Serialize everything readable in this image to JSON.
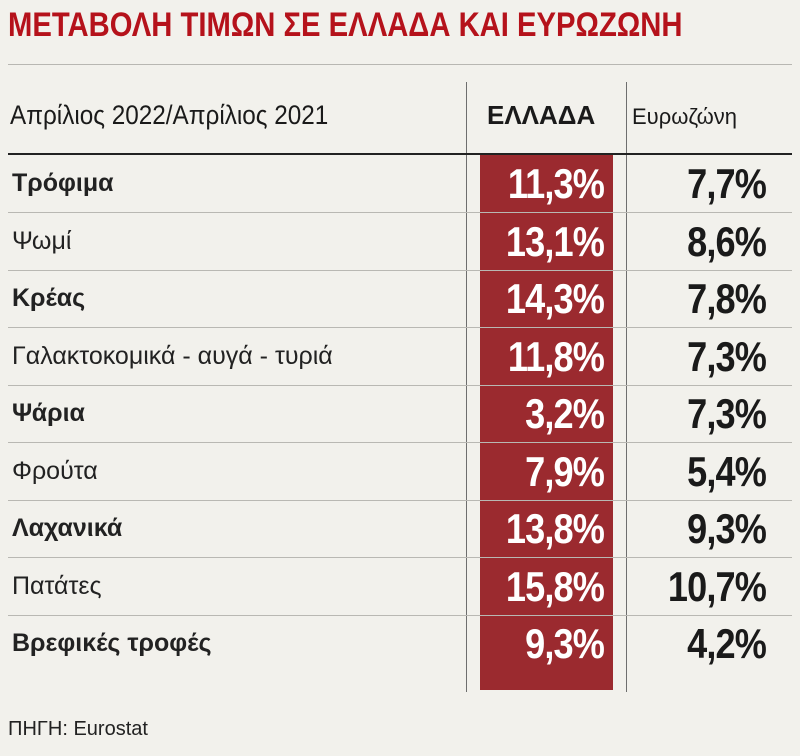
{
  "title": "ΜΕΤΑΒΟΛΗ ΤΙΜΩΝ ΣΕ ΕΛΛΑΔΑ ΚΑΙ ΕΥΡΩΖΩΝΗ",
  "source": "ΠΗΓΗ: Eurostat",
  "colors": {
    "title": "#b5121b",
    "greece_column": "#9b2a2f",
    "background": "#f2f1ec"
  },
  "chart_data": {
    "type": "table",
    "title": "ΜΕΤΑΒΟΛΗ ΤΙΜΩΝ ΣΕ ΕΛΛΑΔΑ ΚΑΙ ΕΥΡΩΖΩΝΗ",
    "columns": [
      "Απρίλιος 2022/Απρίλιος 2021",
      "ΕΛΛΑΔΑ",
      "Ευρωζώνη"
    ],
    "rows": [
      {
        "name": "Τρόφιμα",
        "bold": true,
        "greece": "11,3%",
        "eurozone": "7,7%"
      },
      {
        "name": "Ψωμί",
        "bold": false,
        "greece": "13,1%",
        "eurozone": "8,6%"
      },
      {
        "name": "Κρέας",
        "bold": true,
        "greece": "14,3%",
        "eurozone": "7,8%"
      },
      {
        "name": "Γαλακτοκομικά - αυγά - τυριά",
        "bold": false,
        "greece": "11,8%",
        "eurozone": "7,3%"
      },
      {
        "name": "Ψάρια",
        "bold": true,
        "greece": "3,2%",
        "eurozone": "7,3%"
      },
      {
        "name": "Φρούτα",
        "bold": false,
        "greece": "7,9%",
        "eurozone": "5,4%"
      },
      {
        "name": "Λαχανικά",
        "bold": true,
        "greece": "13,8%",
        "eurozone": "9,3%"
      },
      {
        "name": "Πατάτες",
        "bold": false,
        "greece": "15,8%",
        "eurozone": "10,7%"
      },
      {
        "name": "Βρεφικές τροφές",
        "bold": true,
        "greece": "9,3%",
        "eurozone": "4,2%"
      }
    ]
  }
}
